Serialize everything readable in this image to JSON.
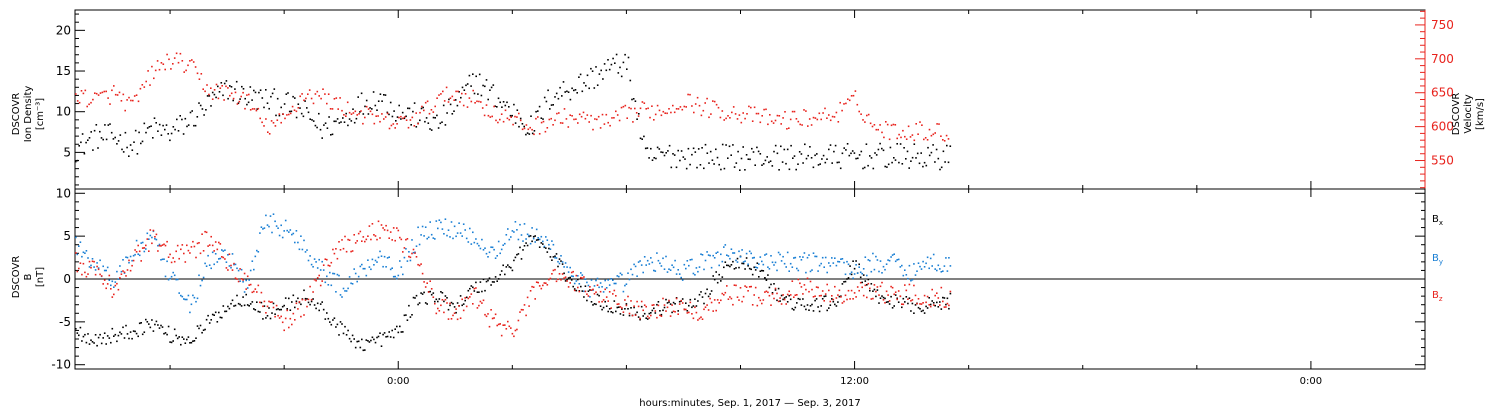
{
  "figure": {
    "xlabel": "hours:minutes, Sep.  1, 2017 — Sep.  3, 2017",
    "x_tick_labels": [
      "0:00",
      "12:00",
      "0:00"
    ]
  },
  "colors": {
    "black": "#000000",
    "red": "#e8231d",
    "blue": "#1a7fd4"
  },
  "chart_data": [
    {
      "type": "scatter",
      "panel": "top",
      "y_title_lines": [
        "DSCOVR",
        "Ion Density",
        "[cm⁻³]"
      ],
      "y2_title_lines": [
        "DSCOVR",
        "Velocity",
        "[km/s]"
      ],
      "x_unit": "hours from Sep 1 2017 00:00",
      "xlim": [
        -8.5,
        27
      ],
      "ylim": [
        0.5,
        22.5
      ],
      "yticks": [
        5,
        10,
        15,
        20
      ],
      "y2lim": [
        508,
        772
      ],
      "y2ticks": [
        550,
        600,
        650,
        700,
        750
      ],
      "series": [
        {
          "name": "Ion Density",
          "color": "black",
          "axis": "left",
          "x": [
            -8.5,
            -8,
            -7.5,
            -7,
            -6.5,
            -6,
            -5.5,
            -5,
            -4.5,
            -4,
            -3.5,
            -3,
            -2.5,
            -2,
            -1.5,
            -1,
            -0.5,
            0,
            0.5,
            1,
            1.5,
            2,
            2.5,
            3,
            3.5,
            4,
            4.5,
            5,
            5.5,
            6,
            6.5,
            7,
            7.5,
            8,
            9,
            10,
            11,
            12,
            13,
            14,
            14.5
          ],
          "y": [
            5.5,
            7,
            7,
            6,
            8,
            7.5,
            9,
            11,
            13,
            12,
            11.5,
            11,
            10,
            8,
            9,
            11,
            12,
            10,
            9.5,
            8.5,
            11,
            14,
            12,
            10,
            8,
            12,
            13,
            14,
            15.5,
            16,
            4.2,
            4.8,
            4.7,
            4.6,
            4.5,
            4.5,
            4.5,
            4.6,
            4.6,
            4.5,
            4.5
          ]
        },
        {
          "name": "Velocity",
          "color": "red",
          "axis": "right",
          "x": [
            -8.5,
            -8,
            -7.5,
            -7,
            -6.5,
            -6,
            -5.5,
            -5,
            -4.5,
            -4,
            -3.5,
            -3,
            -2.5,
            -2,
            -1.5,
            -1,
            -0.5,
            0,
            0.5,
            1,
            1.5,
            2,
            2.5,
            3,
            3.5,
            4,
            4.5,
            5,
            5.5,
            6,
            6.5,
            7,
            7.5,
            8,
            8.5,
            9,
            10,
            11,
            11.5,
            12,
            12.5,
            13,
            14,
            14.5
          ],
          "y": [
            650,
            640,
            650,
            630,
            680,
            700,
            690,
            655,
            650,
            640,
            600,
            610,
            650,
            645,
            630,
            620,
            610,
            605,
            615,
            640,
            650,
            640,
            620,
            610,
            600,
            610,
            615,
            610,
            605,
            620,
            625,
            625,
            640,
            630,
            625,
            620,
            610,
            615,
            620,
            640,
            600,
            595,
            595,
            590
          ]
        }
      ]
    },
    {
      "type": "scatter",
      "panel": "bottom",
      "y_title_lines": [
        "DSCOVR",
        "B",
        "[nT]"
      ],
      "x_unit": "hours from Sep 1 2017 00:00",
      "xlim": [
        -8.5,
        27
      ],
      "ylim": [
        -10.5,
        10.5
      ],
      "yticks": [
        -10,
        -5,
        0,
        5,
        10
      ],
      "zero_line": true,
      "series": [
        {
          "name": "B_x",
          "label_base": "B",
          "label_sub": "x",
          "color": "black",
          "x": [
            -8.5,
            -8,
            -7.5,
            -7,
            -6.5,
            -6,
            -5.5,
            -5,
            -4.5,
            -4,
            -3.5,
            -3,
            -2.5,
            -2,
            -1.5,
            -1,
            -0.5,
            0,
            0.5,
            1,
            1.5,
            2,
            2.5,
            3,
            3.5,
            4,
            4.5,
            5,
            5.5,
            6,
            6.5,
            7,
            7.5,
            8,
            8.5,
            9,
            9.5,
            10,
            10.5,
            11,
            11.5,
            12,
            12.5,
            13,
            13.5,
            14,
            14.5
          ],
          "y": [
            -6,
            -7,
            -6.5,
            -6,
            -5,
            -6.5,
            -7,
            -5,
            -3,
            -2,
            -4,
            -3,
            -2,
            -3.5,
            -6,
            -7.5,
            -7,
            -6,
            -2,
            -2,
            -3,
            -1,
            0,
            2,
            5,
            3,
            0,
            -2,
            -3,
            -3.5,
            -4,
            -3,
            -3,
            -2,
            1,
            2,
            1,
            -2,
            -3,
            -3,
            -2.5,
            2,
            -2,
            -2.5,
            -3,
            -3,
            -2.5
          ]
        },
        {
          "name": "B_y",
          "label_base": "B",
          "label_sub": "y",
          "color": "blue",
          "x": [
            -8.5,
            -8,
            -7.5,
            -7,
            -6.5,
            -6,
            -5.5,
            -5,
            -4.5,
            -4,
            -3.5,
            -3,
            -2.5,
            -2,
            -1.5,
            -1,
            -0.5,
            0,
            0.5,
            1,
            1.5,
            2,
            2.5,
            3,
            3.5,
            4,
            4.5,
            5,
            5.5,
            6,
            6.5,
            7,
            7.5,
            8,
            8.5,
            9,
            9.5,
            10,
            10.5,
            11,
            11.5,
            12,
            12.5,
            13,
            13.5,
            14,
            14.5
          ],
          "y": [
            4,
            2,
            0,
            3,
            5,
            0,
            -3,
            2,
            3,
            -1,
            7,
            6,
            4,
            1,
            -1,
            1,
            3,
            1,
            5,
            6,
            6,
            5,
            3,
            6,
            5,
            4,
            1,
            -1,
            -1,
            0,
            2,
            2,
            1,
            2,
            3,
            3,
            2,
            2,
            2,
            2,
            2,
            1,
            2,
            2,
            1,
            2,
            2
          ]
        },
        {
          "name": "B_z",
          "label_base": "B",
          "label_sub": "z",
          "color": "red",
          "x": [
            -8.5,
            -8,
            -7.5,
            -7,
            -6.5,
            -6,
            -5.5,
            -5,
            -4.5,
            -4,
            -3.5,
            -3,
            -2.5,
            -2,
            -1.5,
            -1,
            -0.5,
            0,
            0.5,
            1,
            1.5,
            2,
            2.5,
            3,
            3.5,
            4,
            4.5,
            5,
            5.5,
            6,
            6.5,
            7,
            7.5,
            8,
            8.5,
            9,
            9.5,
            10,
            10.5,
            11,
            11.5,
            12,
            12.5,
            13,
            13.5,
            14,
            14.5
          ],
          "y": [
            2,
            1,
            -1,
            2,
            5,
            3,
            3,
            5,
            2,
            0,
            -3,
            -5,
            -3,
            1,
            4,
            5,
            6,
            5,
            2,
            -3,
            -4,
            -2,
            -5,
            -6,
            -2,
            1,
            0,
            -1,
            -2,
            -3,
            -3.5,
            -3,
            -3.5,
            -3.5,
            -2,
            -1.5,
            -2,
            -2,
            -1,
            -1,
            -2,
            -1.5,
            -1,
            -2,
            -1.5,
            -2,
            -2
          ]
        }
      ]
    }
  ]
}
